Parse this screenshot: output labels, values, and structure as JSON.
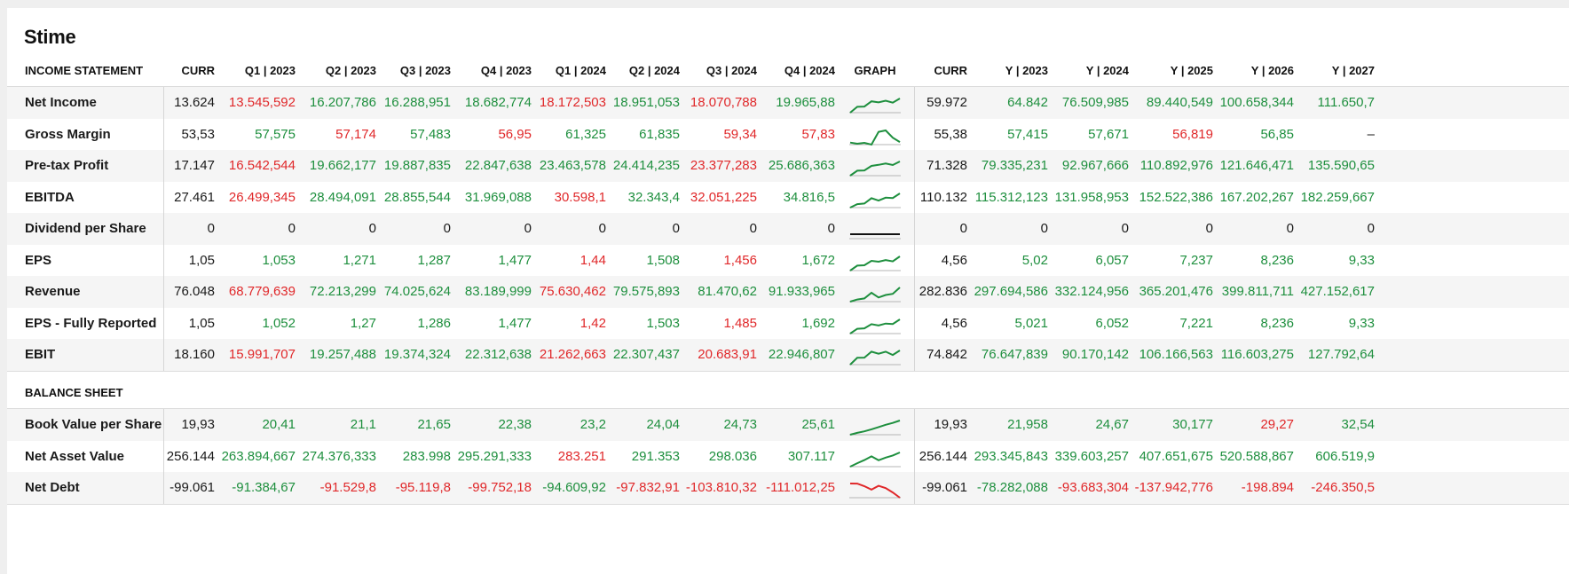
{
  "page_title": "Stime",
  "colors": {
    "positive": "#1e8f3e",
    "negative": "#e0282a",
    "neutral": "#1a1a1a"
  },
  "income": {
    "section_label": "INCOME STATEMENT",
    "headers": [
      "CURR",
      "Q1 | 2023",
      "Q2 | 2023",
      "Q3 | 2023",
      "Q4 | 2023",
      "Q1 | 2024",
      "Q2 | 2024",
      "Q3 | 2024",
      "Q4 | 2024",
      "GRAPH",
      "CURR",
      "Y | 2023",
      "Y | 2024",
      "Y | 2025",
      "Y | 2026",
      "Y | 2027"
    ],
    "rows": [
      {
        "label": "Net Income",
        "curr": "13.624",
        "q": [
          [
            "13.545,592",
            "neg"
          ],
          [
            "16.207,786",
            "pos"
          ],
          [
            "16.288,951",
            "pos"
          ],
          [
            "18.682,774",
            "pos"
          ],
          [
            "18.172,503",
            "neg"
          ],
          [
            "18.951,053",
            "pos"
          ],
          [
            "18.070,788",
            "neg"
          ],
          [
            "19.965,88",
            "pos"
          ]
        ],
        "spark": [
          13.5,
          16.2,
          16.3,
          18.7,
          18.2,
          19.0,
          18.1,
          20.0
        ],
        "spark_color": "pos",
        "ycurr": "59.972",
        "y": [
          [
            "64.842",
            "pos"
          ],
          [
            "76.509,985",
            "pos"
          ],
          [
            "89.440,549",
            "pos"
          ],
          [
            "100.658,344",
            "pos"
          ],
          [
            "111.650,7",
            "pos"
          ]
        ]
      },
      {
        "label": "Gross Margin",
        "curr": "53,53",
        "q": [
          [
            "57,575",
            "pos"
          ],
          [
            "57,174",
            "neg"
          ],
          [
            "57,483",
            "pos"
          ],
          [
            "56,95",
            "neg"
          ],
          [
            "61,325",
            "pos"
          ],
          [
            "61,835",
            "pos"
          ],
          [
            "59,34",
            "neg"
          ],
          [
            "57,83",
            "neg"
          ]
        ],
        "spark": [
          57.6,
          57.2,
          57.5,
          56.9,
          61.3,
          61.8,
          59.3,
          57.8
        ],
        "spark_color": "pos",
        "ycurr": "55,38",
        "y": [
          [
            "57,415",
            "pos"
          ],
          [
            "57,671",
            "pos"
          ],
          [
            "56,819",
            "neg"
          ],
          [
            "56,85",
            "pos"
          ],
          [
            "–",
            "neu"
          ]
        ]
      },
      {
        "label": "Pre-tax Profit",
        "curr": "17.147",
        "q": [
          [
            "16.542,544",
            "neg"
          ],
          [
            "19.662,177",
            "pos"
          ],
          [
            "19.887,835",
            "pos"
          ],
          [
            "22.847,638",
            "pos"
          ],
          [
            "23.463,578",
            "pos"
          ],
          [
            "24.414,235",
            "pos"
          ],
          [
            "23.377,283",
            "neg"
          ],
          [
            "25.686,363",
            "pos"
          ]
        ],
        "spark": [
          16.5,
          19.7,
          19.9,
          22.8,
          23.5,
          24.4,
          23.4,
          25.7
        ],
        "spark_color": "pos",
        "ycurr": "71.328",
        "y": [
          [
            "79.335,231",
            "pos"
          ],
          [
            "92.967,666",
            "pos"
          ],
          [
            "110.892,976",
            "pos"
          ],
          [
            "121.646,471",
            "pos"
          ],
          [
            "135.590,65",
            "pos"
          ]
        ]
      },
      {
        "label": "EBITDA",
        "curr": "27.461",
        "q": [
          [
            "26.499,345",
            "neg"
          ],
          [
            "28.494,091",
            "pos"
          ],
          [
            "28.855,544",
            "pos"
          ],
          [
            "31.969,088",
            "pos"
          ],
          [
            "30.598,1",
            "neg"
          ],
          [
            "32.343,4",
            "pos"
          ],
          [
            "32.051,225",
            "neg"
          ],
          [
            "34.816,5",
            "pos"
          ]
        ],
        "spark": [
          26.5,
          28.5,
          28.9,
          32.0,
          30.6,
          32.3,
          32.1,
          34.8
        ],
        "spark_color": "pos",
        "ycurr": "110.132",
        "y": [
          [
            "115.312,123",
            "pos"
          ],
          [
            "131.958,953",
            "pos"
          ],
          [
            "152.522,386",
            "pos"
          ],
          [
            "167.202,267",
            "pos"
          ],
          [
            "182.259,667",
            "pos"
          ]
        ]
      },
      {
        "label": "Dividend per Share",
        "curr": "0",
        "q": [
          [
            "0",
            "neu"
          ],
          [
            "0",
            "neu"
          ],
          [
            "0",
            "neu"
          ],
          [
            "0",
            "neu"
          ],
          [
            "0",
            "neu"
          ],
          [
            "0",
            "neu"
          ],
          [
            "0",
            "neu"
          ],
          [
            "0",
            "neu"
          ]
        ],
        "spark": [
          0,
          0,
          0,
          0,
          0,
          0,
          0,
          0
        ],
        "spark_color": "neu",
        "ycurr": "0",
        "y": [
          [
            "0",
            "neu"
          ],
          [
            "0",
            "neu"
          ],
          [
            "0",
            "neu"
          ],
          [
            "0",
            "neu"
          ],
          [
            "0",
            "neu"
          ]
        ]
      },
      {
        "label": "EPS",
        "curr": "1,05",
        "q": [
          [
            "1,053",
            "pos"
          ],
          [
            "1,271",
            "pos"
          ],
          [
            "1,287",
            "pos"
          ],
          [
            "1,477",
            "pos"
          ],
          [
            "1,44",
            "neg"
          ],
          [
            "1,508",
            "pos"
          ],
          [
            "1,456",
            "neg"
          ],
          [
            "1,672",
            "pos"
          ]
        ],
        "spark": [
          1.053,
          1.271,
          1.287,
          1.477,
          1.44,
          1.508,
          1.456,
          1.672
        ],
        "spark_color": "pos",
        "ycurr": "4,56",
        "y": [
          [
            "5,02",
            "pos"
          ],
          [
            "6,057",
            "pos"
          ],
          [
            "7,237",
            "pos"
          ],
          [
            "8,236",
            "pos"
          ],
          [
            "9,33",
            "pos"
          ]
        ]
      },
      {
        "label": "Revenue",
        "curr": "76.048",
        "q": [
          [
            "68.779,639",
            "neg"
          ],
          [
            "72.213,299",
            "pos"
          ],
          [
            "74.025,624",
            "pos"
          ],
          [
            "83.189,999",
            "pos"
          ],
          [
            "75.630,462",
            "neg"
          ],
          [
            "79.575,893",
            "pos"
          ],
          [
            "81.470,62",
            "pos"
          ],
          [
            "91.933,965",
            "pos"
          ]
        ],
        "spark": [
          68.8,
          72.2,
          74.0,
          83.2,
          75.6,
          79.6,
          81.5,
          91.9
        ],
        "spark_color": "pos",
        "ycurr": "282.836",
        "y": [
          [
            "297.694,586",
            "pos"
          ],
          [
            "332.124,956",
            "pos"
          ],
          [
            "365.201,476",
            "pos"
          ],
          [
            "399.811,711",
            "pos"
          ],
          [
            "427.152,617",
            "pos"
          ]
        ]
      },
      {
        "label": "EPS - Fully Reported",
        "curr": "1,05",
        "q": [
          [
            "1,052",
            "pos"
          ],
          [
            "1,27",
            "pos"
          ],
          [
            "1,286",
            "pos"
          ],
          [
            "1,477",
            "pos"
          ],
          [
            "1,42",
            "neg"
          ],
          [
            "1,503",
            "pos"
          ],
          [
            "1,485",
            "neg"
          ],
          [
            "1,692",
            "pos"
          ]
        ],
        "spark": [
          1.052,
          1.27,
          1.286,
          1.477,
          1.42,
          1.503,
          1.485,
          1.692
        ],
        "spark_color": "pos",
        "ycurr": "4,56",
        "y": [
          [
            "5,021",
            "pos"
          ],
          [
            "6,052",
            "pos"
          ],
          [
            "7,221",
            "pos"
          ],
          [
            "8,236",
            "pos"
          ],
          [
            "9,33",
            "pos"
          ]
        ]
      },
      {
        "label": "EBIT",
        "curr": "18.160",
        "q": [
          [
            "15.991,707",
            "neg"
          ],
          [
            "19.257,488",
            "pos"
          ],
          [
            "19.374,324",
            "pos"
          ],
          [
            "22.312,638",
            "pos"
          ],
          [
            "21.262,663",
            "neg"
          ],
          [
            "22.307,437",
            "pos"
          ],
          [
            "20.683,91",
            "neg"
          ],
          [
            "22.946,807",
            "pos"
          ]
        ],
        "spark": [
          16.0,
          19.3,
          19.4,
          22.3,
          21.3,
          22.3,
          20.7,
          22.9
        ],
        "spark_color": "pos",
        "ycurr": "74.842",
        "y": [
          [
            "76.647,839",
            "pos"
          ],
          [
            "90.170,142",
            "pos"
          ],
          [
            "106.166,563",
            "pos"
          ],
          [
            "116.603,275",
            "pos"
          ],
          [
            "127.792,64",
            "pos"
          ]
        ]
      }
    ]
  },
  "balance": {
    "section_label": "BALANCE SHEET",
    "rows": [
      {
        "label": "Book Value per Share",
        "curr": "19,93",
        "q": [
          [
            "20,41",
            "pos"
          ],
          [
            "21,1",
            "pos"
          ],
          [
            "21,65",
            "pos"
          ],
          [
            "22,38",
            "pos"
          ],
          [
            "23,2",
            "pos"
          ],
          [
            "24,04",
            "pos"
          ],
          [
            "24,73",
            "pos"
          ],
          [
            "25,61",
            "pos"
          ]
        ],
        "spark": [
          20.41,
          21.1,
          21.65,
          22.38,
          23.2,
          24.04,
          24.73,
          25.61
        ],
        "spark_color": "pos",
        "ycurr": "19,93",
        "y": [
          [
            "21,958",
            "pos"
          ],
          [
            "24,67",
            "pos"
          ],
          [
            "30,177",
            "pos"
          ],
          [
            "29,27",
            "neg"
          ],
          [
            "32,54",
            "pos"
          ]
        ]
      },
      {
        "label": "Net Asset Value",
        "curr": "256.144",
        "q": [
          [
            "263.894,667",
            "pos"
          ],
          [
            "274.376,333",
            "pos"
          ],
          [
            "283.998",
            "pos"
          ],
          [
            "295.291,333",
            "pos"
          ],
          [
            "283.251",
            "neg"
          ],
          [
            "291.353",
            "pos"
          ],
          [
            "298.036",
            "pos"
          ],
          [
            "307.117",
            "pos"
          ]
        ],
        "spark": [
          263.9,
          274.4,
          284.0,
          295.3,
          283.3,
          291.4,
          298.0,
          307.1
        ],
        "spark_color": "pos",
        "ycurr": "256.144",
        "y": [
          [
            "293.345,843",
            "pos"
          ],
          [
            "339.603,257",
            "pos"
          ],
          [
            "407.651,675",
            "pos"
          ],
          [
            "520.588,867",
            "pos"
          ],
          [
            "606.519,9",
            "pos"
          ]
        ]
      },
      {
        "label": "Net Debt",
        "curr": "-99.061",
        "q": [
          [
            "-91.384,67",
            "pos"
          ],
          [
            "-91.529,8",
            "neg"
          ],
          [
            "-95.119,8",
            "neg"
          ],
          [
            "-99.752,18",
            "neg"
          ],
          [
            "-94.609,92",
            "pos"
          ],
          [
            "-97.832,91",
            "neg"
          ],
          [
            "-103.810,32",
            "neg"
          ],
          [
            "-111.012,25",
            "neg"
          ]
        ],
        "spark": [
          -91.4,
          -91.5,
          -95.1,
          -99.8,
          -94.6,
          -97.8,
          -103.8,
          -111.0
        ],
        "spark_color": "neg",
        "ycurr": "-99.061",
        "y": [
          [
            "-78.282,088",
            "pos"
          ],
          [
            "-93.683,304",
            "neg"
          ],
          [
            "-137.942,776",
            "neg"
          ],
          [
            "-198.894",
            "neg"
          ],
          [
            "-246.350,5",
            "neg"
          ]
        ]
      }
    ]
  }
}
